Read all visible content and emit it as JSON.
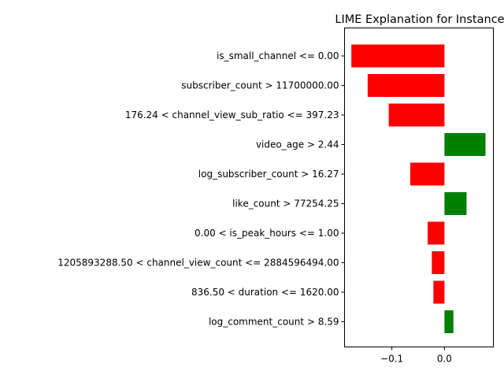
{
  "chart_data": {
    "type": "bar",
    "orientation": "horizontal",
    "title": "LIME Explanation for Instance",
    "xlabel": "",
    "ylabel": "",
    "categories": [
      "is_small_channel <= 0.00",
      "subscriber_count > 11700000.00",
      "176.24 < channel_view_sub_ratio <= 397.23",
      "video_age > 2.44",
      "log_subscriber_count > 16.27",
      "like_count > 77254.25",
      "0.00 < is_peak_hours <= 1.00",
      "1205893288.50 < channel_view_count <= 2884596494.00",
      "836.50 < duration <= 1620.00",
      "log_comment_count > 8.59"
    ],
    "values": [
      -0.177,
      -0.146,
      -0.106,
      0.078,
      -0.065,
      0.042,
      -0.032,
      -0.024,
      -0.021,
      0.017
    ],
    "xlim": [
      -0.19,
      0.093
    ],
    "xticks": [
      -0.1,
      0.0
    ],
    "xtick_labels": [
      "−0.1",
      "0.0"
    ],
    "grid": false,
    "colors": {
      "positive": "#008000",
      "negative": "#ff0000"
    }
  }
}
